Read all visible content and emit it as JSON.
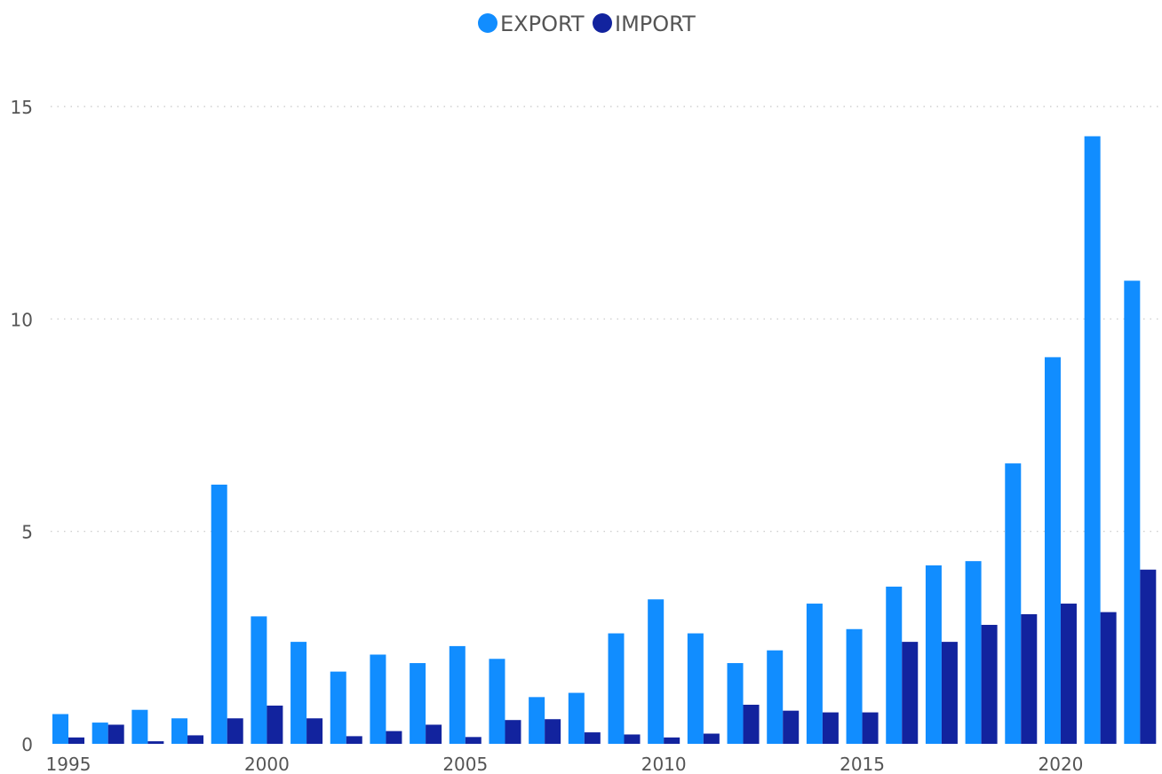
{
  "chart_data": {
    "type": "bar",
    "title": "",
    "xlabel": "",
    "ylabel": "",
    "legend_position": "top-center",
    "grid": true,
    "categories": [
      1995,
      1996,
      1997,
      1998,
      1999,
      2000,
      2001,
      2002,
      2003,
      2004,
      2005,
      2006,
      2007,
      2008,
      2009,
      2010,
      2011,
      2012,
      2013,
      2014,
      2015,
      2016,
      2017,
      2018,
      2019,
      2020,
      2021,
      2022
    ],
    "x_tick_labels": [
      "1995",
      "2000",
      "2005",
      "2010",
      "2015",
      "2020"
    ],
    "y_tick_labels": [
      "0",
      "5",
      "10",
      "15"
    ],
    "y_ticks": [
      0,
      5,
      10,
      15
    ],
    "ylim": [
      0,
      15.5
    ],
    "series": [
      {
        "name": "EXPORT",
        "color": "#118DFF",
        "values": [
          0.7,
          0.5,
          0.8,
          0.6,
          6.1,
          3.0,
          2.4,
          1.7,
          2.1,
          1.9,
          2.3,
          2.0,
          1.1,
          1.2,
          2.6,
          3.4,
          2.6,
          1.9,
          2.2,
          3.3,
          2.7,
          3.7,
          4.2,
          4.3,
          6.6,
          9.1,
          14.3,
          10.9
        ]
      },
      {
        "name": "IMPORT",
        "color": "#12239E",
        "values": [
          0.15,
          0.45,
          0.06,
          0.2,
          0.6,
          0.9,
          0.6,
          0.18,
          0.3,
          0.45,
          0.16,
          0.56,
          0.58,
          0.27,
          0.22,
          0.15,
          0.24,
          0.92,
          0.78,
          0.74,
          0.74,
          2.4,
          2.4,
          2.8,
          3.05,
          3.3,
          3.1,
          4.1
        ]
      }
    ]
  }
}
